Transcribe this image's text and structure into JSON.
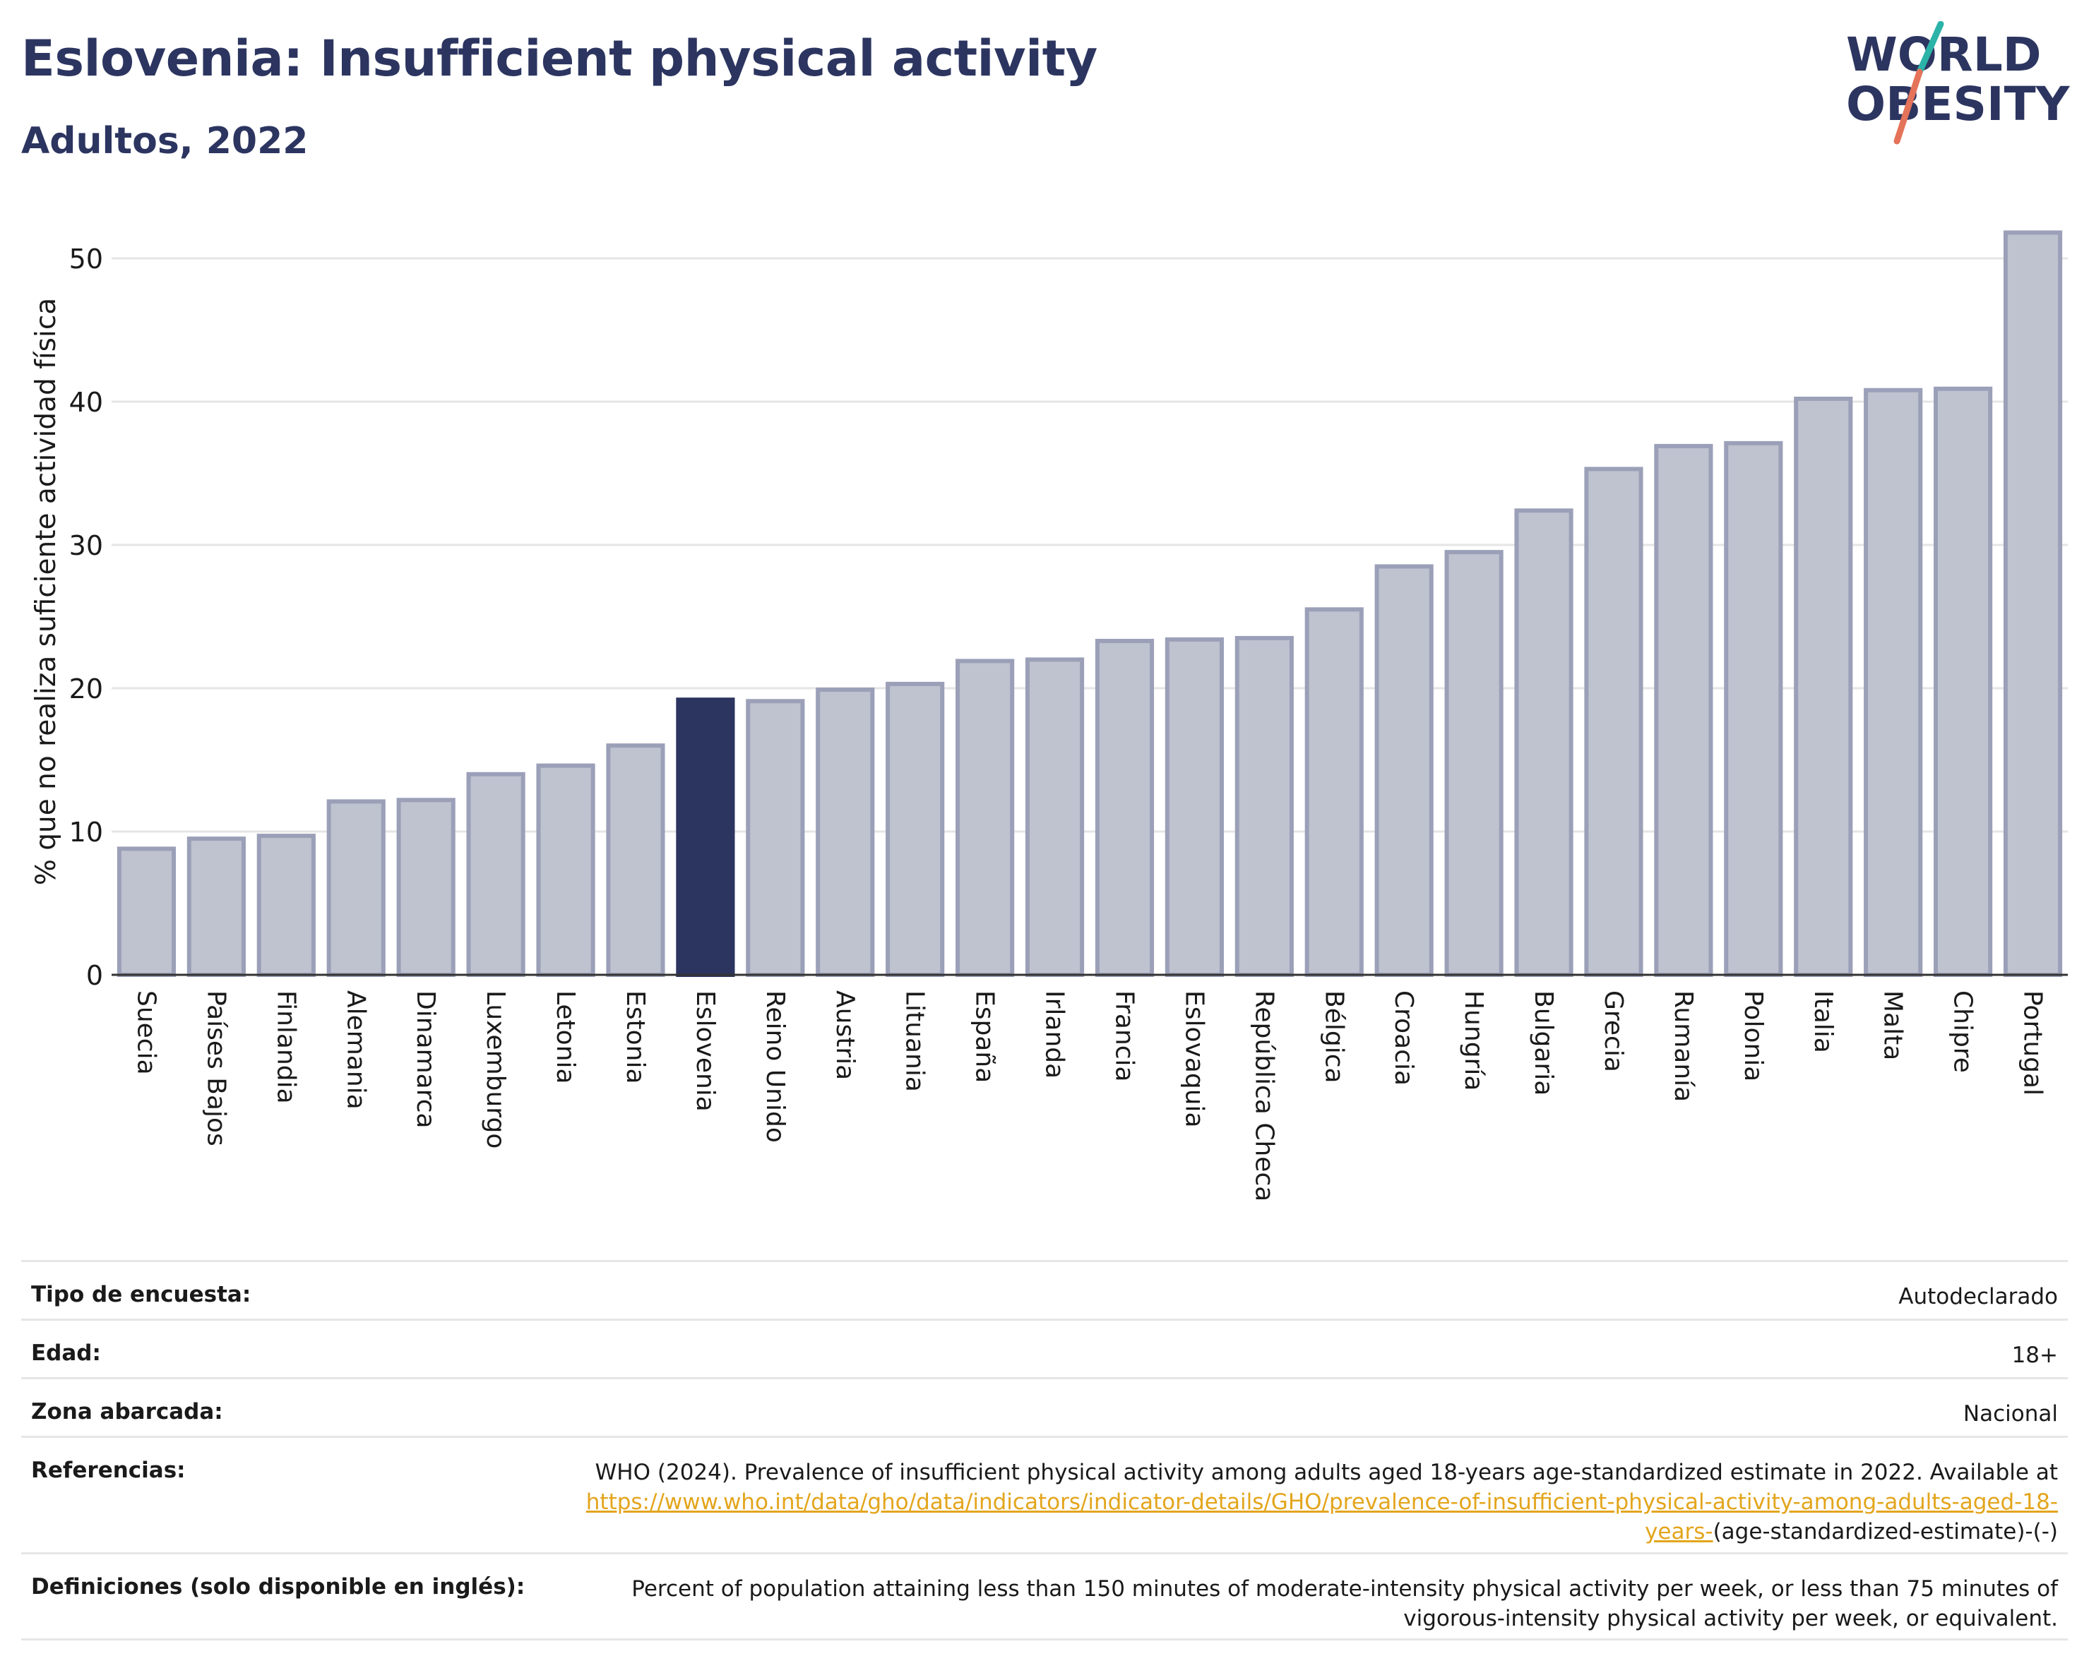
{
  "header": {
    "title": "Eslovenia: Insufficient physical activity",
    "subtitle": "Adultos, 2022"
  },
  "logo": {
    "line1": "WORLD",
    "line2": "OBESITY",
    "colors": {
      "text": "#2c3560",
      "slash_top": "#2bb3a8",
      "slash_bottom": "#e4735a"
    }
  },
  "colors": {
    "bar": "#2c3560",
    "bar_muted_fill": "#bfc2cf",
    "bar_muted_stroke": "#9ba0b8",
    "grid": "#e5e5e5",
    "link": "#e3a51c"
  },
  "chart_data": {
    "type": "bar",
    "highlight": "Eslovenia",
    "ylabel": "% que no realiza suficiente actividad física",
    "ylim": [
      0,
      52
    ],
    "yticks": [
      0,
      10,
      20,
      30,
      40,
      50
    ],
    "grid": true,
    "categories": [
      "Suecia",
      "Países Bajos",
      "Finlandia",
      "Alemania",
      "Dinamarca",
      "Luxemburgo",
      "Letonia",
      "Estonia",
      "Eslovenia",
      "Reino Unido",
      "Austria",
      "Lituania",
      "España",
      "Irlanda",
      "Francia",
      "Eslovaquia",
      "República Checa",
      "Bélgica",
      "Croacia",
      "Hungría",
      "Bulgaria",
      "Grecia",
      "Rumanía",
      "Polonia",
      "Italia",
      "Malta",
      "Chipre",
      "Portugal"
    ],
    "values": [
      8.8,
      9.5,
      9.7,
      12.1,
      12.2,
      14.0,
      14.6,
      16.0,
      19.2,
      19.1,
      19.9,
      20.3,
      21.9,
      22.0,
      23.3,
      23.4,
      23.5,
      25.5,
      28.5,
      29.5,
      32.4,
      35.3,
      36.9,
      37.1,
      40.2,
      40.8,
      40.9,
      51.8
    ]
  },
  "footer": {
    "rows": [
      {
        "key": "Tipo de encuesta:",
        "value": "Autodeclarado"
      },
      {
        "key": "Edad:",
        "value": "18+"
      },
      {
        "key": "Zona abarcada:",
        "value": "Nacional"
      },
      {
        "key": "Referencias:",
        "value": "WHO (2024). Prevalence of insufficient physical activity among adults aged 18-years age-standardized estimate in 2022. Available at",
        "link": "https://www.who.int/data/gho/data/indicators/indicator-details/GHO/prevalence-of-insufficient-physical-activity-among-adults-aged-18-years-",
        "suffix": "(age-standardized-estimate)-(-)"
      },
      {
        "key": "Definiciones (solo disponible en inglés):",
        "value": "Percent of population attaining less than 150 minutes of moderate-intensity physical activity per week, or less than 75 minutes of vigorous-intensity physical activity per week, or equivalent."
      }
    ]
  }
}
